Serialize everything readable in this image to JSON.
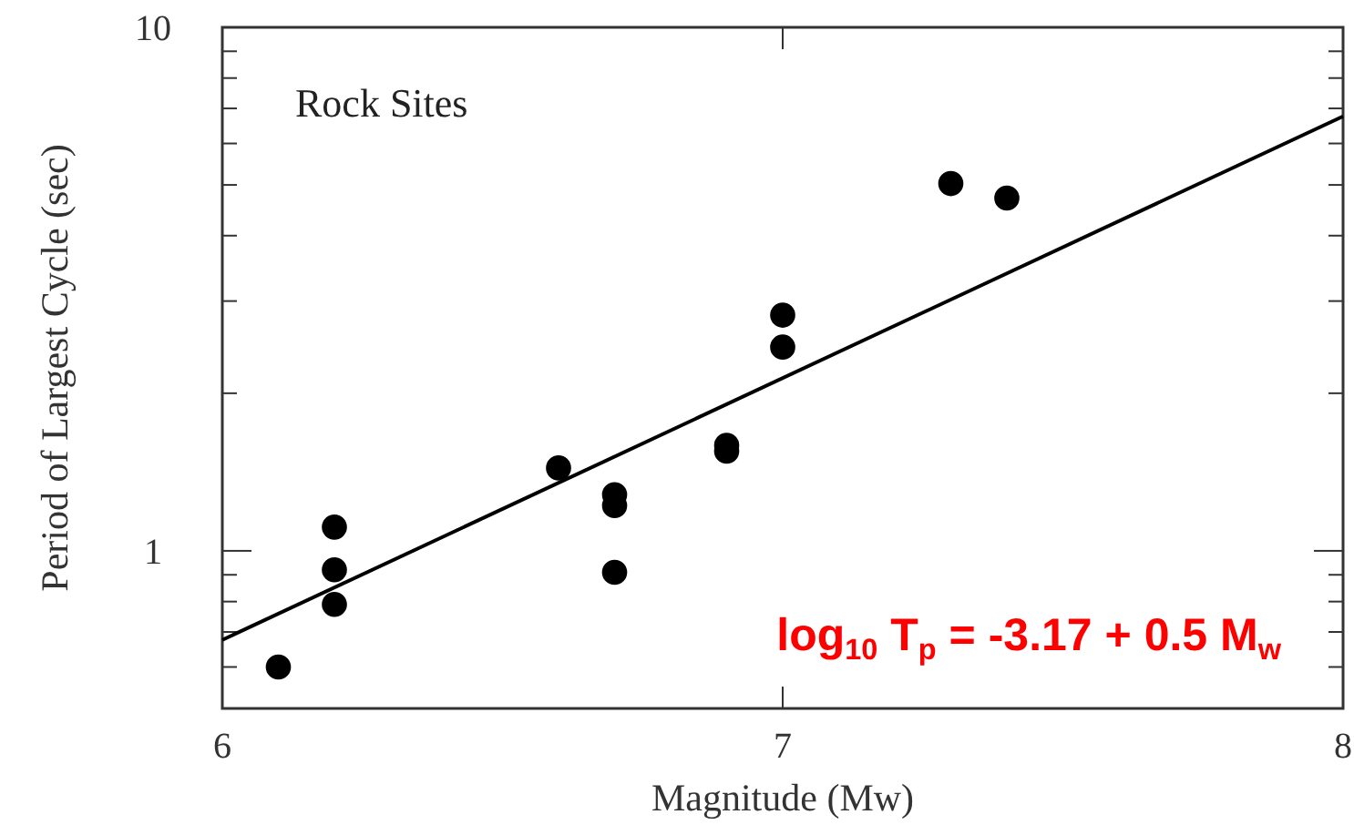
{
  "chart_data": {
    "type": "scatter",
    "xlabel": "Magnitude (Mw)",
    "ylabel": "Period of Largest Cycle (sec)",
    "annotations": [
      "Rock Sites",
      "log$_{10}$ T$_{p}$ = -3.17 + 0.5 M$_{w}$"
    ],
    "log": "y",
    "grid": false,
    "marker": "circle",
    "xlim": [
      6,
      8
    ],
    "xticks": [
      6,
      7,
      8
    ],
    "ylim": [
      0.5,
      10
    ],
    "yticks": [
      {
        "value": 0.6,
        "label": null
      },
      {
        "value": 0.7,
        "label": null
      },
      {
        "value": 0.8,
        "label": null
      },
      {
        "value": 0.9,
        "label": null
      },
      1,
      {
        "value": 2,
        "label": null
      },
      {
        "value": 3,
        "label": null
      },
      {
        "value": 4,
        "label": null
      },
      {
        "value": 5,
        "label": null
      },
      {
        "value": 6,
        "label": null
      },
      {
        "value": 7,
        "label": null
      },
      {
        "value": 8,
        "label": null
      },
      {
        "value": 9,
        "label": null
      },
      10
    ],
    "series": [
      {
        "color": "#000000",
        "x": [
          6.1,
          6.2,
          6.2,
          6.2,
          6.6,
          6.7,
          6.7,
          6.7,
          6.9,
          6.9,
          7,
          7,
          7.3,
          7.4
        ],
        "values": [
          0.6,
          1.11,
          0.92,
          0.79,
          1.44,
          1.28,
          1.22,
          0.91,
          1.59,
          1.55,
          2.82,
          2.45,
          5.03,
          4.72
        ]
      },
      {
        "type": "line",
        "color": "#000000",
        "marker": "none",
        "line_style": "solid",
        "x": [
          6,
          8
        ],
        "values": [
          0.676,
          6.76
        ]
      }
    ]
  }
}
